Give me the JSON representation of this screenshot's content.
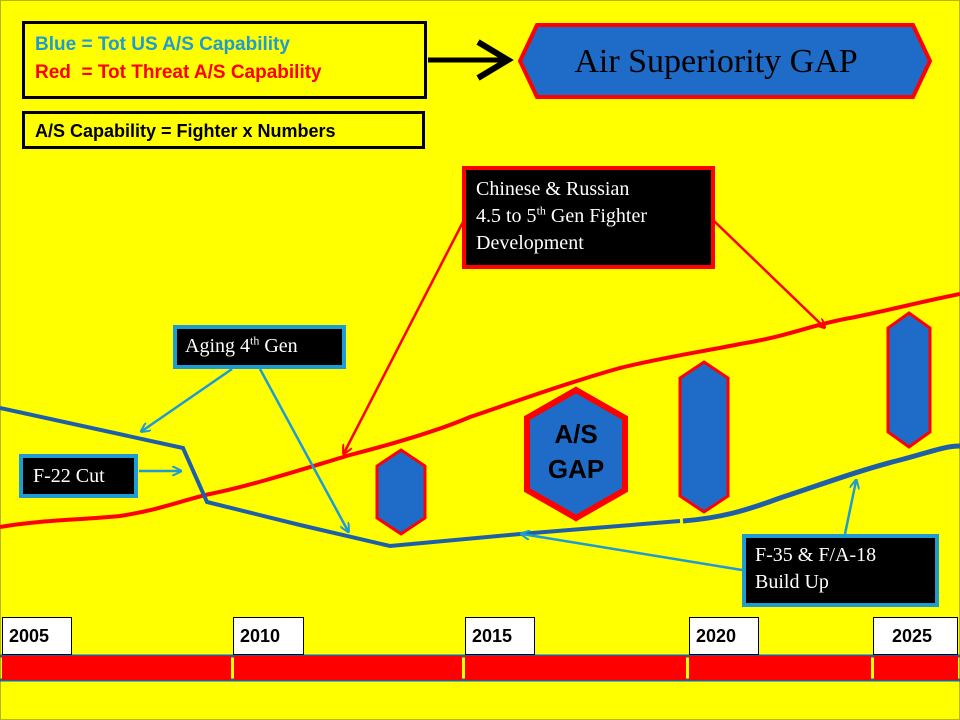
{
  "legend": {
    "blue_line": "Blue = Tot US A/S Capability",
    "red_line": "Red  = Tot Threat A/S Capability"
  },
  "formula": "A/S Capability = Fighter x Numbers",
  "title": "Air Superiority GAP",
  "gap_label": {
    "line1": "A/S",
    "line2": "GAP"
  },
  "callouts": {
    "chinese_russian": {
      "l1": "Chinese & Russian",
      "l2a": "4.5 to 5",
      "l2sup": "th",
      "l2b": " Gen Fighter",
      "l3": "Development"
    },
    "aging": {
      "a": "Aging 4",
      "sup": "th",
      "b": " Gen"
    },
    "f22": "F-22 Cut",
    "f35": {
      "l1": "F-35 & F/A-18",
      "l2": "Build Up"
    }
  },
  "timeline": {
    "years": [
      "2005",
      "2010",
      "2015",
      "2020",
      "2025"
    ]
  },
  "colors": {
    "background": "#ffff00",
    "us": "#1f5fa8",
    "threat": "#ff0000",
    "cyan": "#1f9bd3",
    "gap_fill": "#1e6cc8"
  },
  "chart_data": {
    "type": "line",
    "x_axis": [
      "2005",
      "2010",
      "2015",
      "2020",
      "2025"
    ],
    "series": [
      {
        "name": "Blue = Tot US A/S Capability",
        "color": "blue"
      },
      {
        "name": "Red = Tot Threat A/S Capability",
        "color": "red"
      }
    ],
    "annotations": [
      "Aging 4th Gen",
      "F-22 Cut",
      "F-35 & F/A-18 Build Up",
      "Chinese & Russian 4.5 to 5th Gen Fighter Development",
      "A/S GAP"
    ]
  }
}
